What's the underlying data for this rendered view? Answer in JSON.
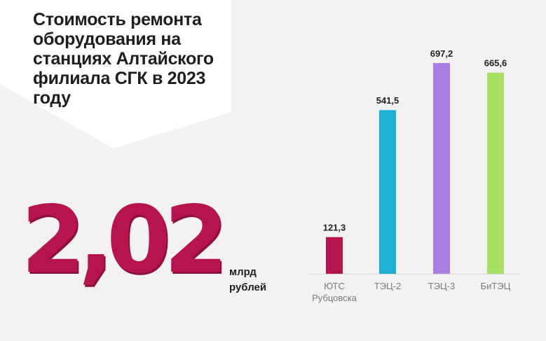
{
  "title": "Стоимость ремонта оборудования на станциях Алтайского филиала СГК в 2023 году",
  "total": {
    "value": "2,02",
    "unit_line1": "млрд",
    "unit_line2": "рублей"
  },
  "chart_data": {
    "type": "bar",
    "categories": [
      "ЮТС Рубцовска",
      "ТЭЦ-2",
      "ТЭЦ-3",
      "БиТЭЦ"
    ],
    "category_lines": [
      [
        "ЮТС",
        "Рубцовска"
      ],
      [
        "ТЭЦ-2"
      ],
      [
        "ТЭЦ-3"
      ],
      [
        "БиТЭЦ"
      ]
    ],
    "values": [
      121.3,
      541.5,
      697.2,
      665.6
    ],
    "value_labels": [
      "121,3",
      "541,5",
      "697,2",
      "665,6"
    ],
    "colors": [
      "#b5144f",
      "#1eb1d4",
      "#a97fe3",
      "#a8e065"
    ],
    "ylim": [
      0,
      697.2
    ],
    "grid": false,
    "legend": "none"
  }
}
